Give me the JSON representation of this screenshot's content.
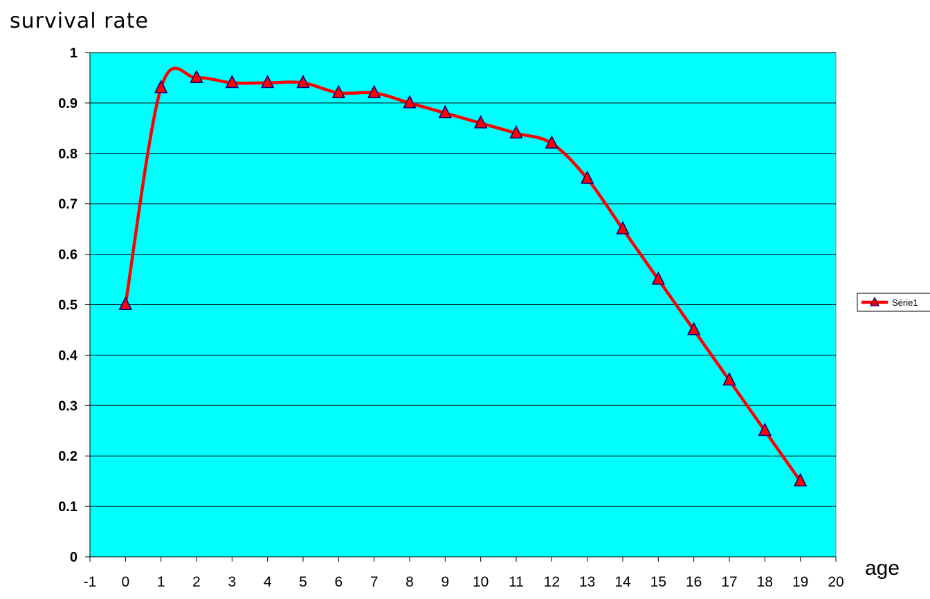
{
  "chart_data": {
    "type": "line",
    "ylabel": "survival rate",
    "xlabel": "age",
    "xlim": [
      -1,
      20
    ],
    "ylim": [
      0,
      1
    ],
    "xticks": [
      -1,
      0,
      1,
      2,
      3,
      4,
      5,
      6,
      7,
      8,
      9,
      10,
      11,
      12,
      13,
      14,
      15,
      16,
      17,
      18,
      19,
      20
    ],
    "yticks": [
      "0",
      "0.1",
      "0.2",
      "0.3",
      "0.4",
      "0.5",
      "0.6",
      "0.7",
      "0.8",
      "0.9",
      "1"
    ],
    "grid": "horizontal",
    "smooth": true,
    "legend_position": "right",
    "plot_background": "#00ffff",
    "series": [
      {
        "name": "Série1",
        "color": "#ff0000",
        "marker": "triangle",
        "marker_fill": "#ff0000",
        "marker_edge": "#000080",
        "x": [
          0,
          1,
          2,
          3,
          4,
          5,
          6,
          7,
          8,
          9,
          10,
          11,
          12,
          13,
          14,
          15,
          16,
          17,
          18,
          19
        ],
        "y": [
          0.5,
          0.93,
          0.95,
          0.94,
          0.94,
          0.94,
          0.92,
          0.92,
          0.9,
          0.88,
          0.86,
          0.84,
          0.82,
          0.75,
          0.65,
          0.55,
          0.45,
          0.35,
          0.25,
          0.15
        ]
      }
    ]
  }
}
